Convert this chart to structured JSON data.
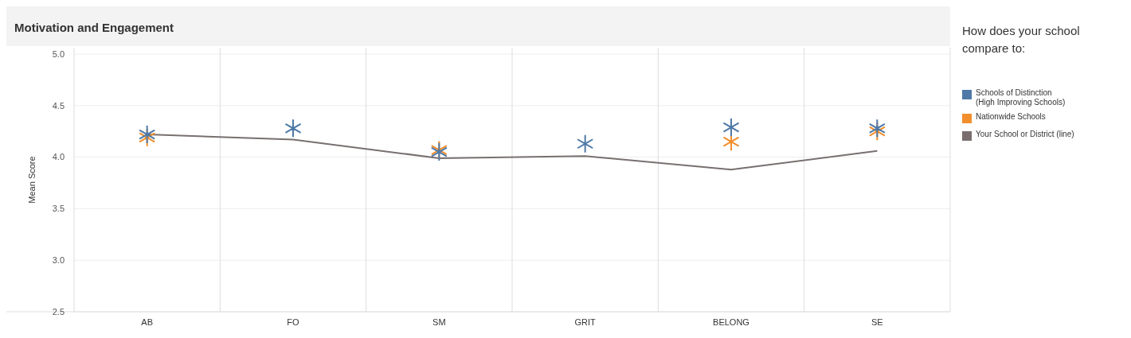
{
  "chart_data": {
    "type": "scatter",
    "title": "Motivation and Engagement",
    "ylabel": "Mean Score",
    "legend_title": "How does your school compare to:",
    "categories": [
      "AB",
      "FO",
      "SM",
      "GRIT",
      "BELONG",
      "SE"
    ],
    "series": [
      {
        "name": "Schools of Distinction (High Improving Schools)",
        "color": "#4e79a7",
        "marker": "cross",
        "values": [
          4.22,
          4.28,
          4.05,
          4.13,
          4.29,
          4.28
        ]
      },
      {
        "name": "Nationwide Schools",
        "color": "#f28e2b",
        "marker": "cross",
        "values": [
          4.19,
          null,
          4.07,
          null,
          4.15,
          4.25
        ]
      },
      {
        "name": "Your School or District (line)",
        "color": "#796f6f",
        "type": "line",
        "marker": "none",
        "line_style": "solid",
        "values": [
          4.22,
          4.17,
          3.99,
          4.01,
          3.88,
          4.06
        ]
      }
    ],
    "ylim": [
      2.5,
      5.0
    ],
    "yticks": [
      {
        "value": 2.5,
        "label": "2.5"
      },
      {
        "value": 3,
        "label": "3.0"
      },
      {
        "value": 3.5,
        "label": "3.5"
      },
      {
        "value": 4,
        "label": "4.0"
      },
      {
        "value": 4.5,
        "label": "4.5"
      },
      {
        "value": 5,
        "label": "5.0"
      }
    ],
    "grid": true,
    "legend": "right"
  }
}
